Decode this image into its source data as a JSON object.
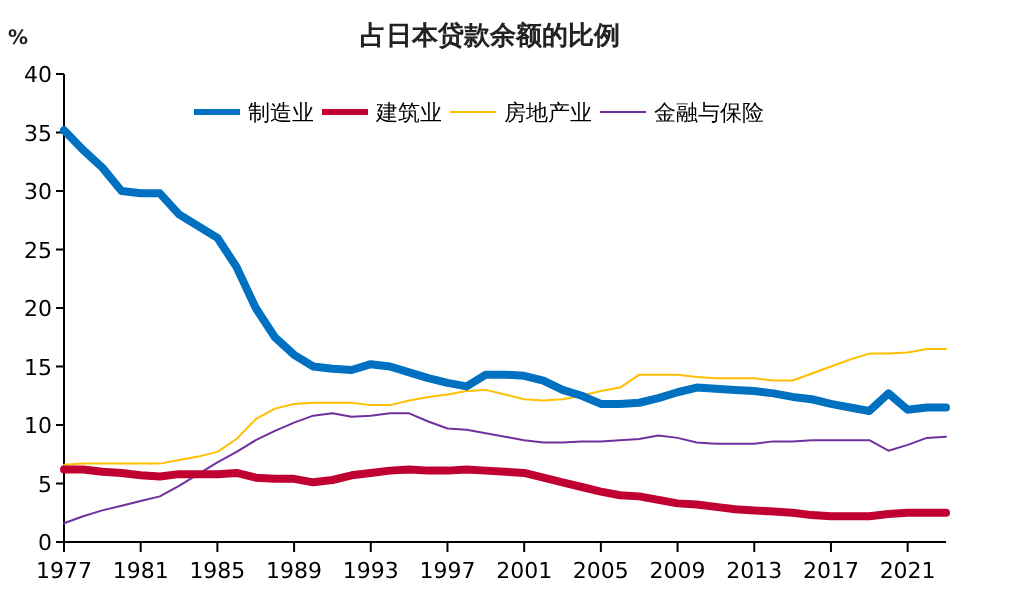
{
  "chart_data": {
    "type": "line",
    "title": "占日本贷款余额的比例",
    "ylabel": "%",
    "x": [
      1977,
      1978,
      1979,
      1980,
      1981,
      1982,
      1983,
      1984,
      1985,
      1986,
      1987,
      1988,
      1989,
      1990,
      1991,
      1992,
      1993,
      1994,
      1995,
      1996,
      1997,
      1998,
      1999,
      2000,
      2001,
      2002,
      2003,
      2004,
      2005,
      2006,
      2007,
      2008,
      2009,
      2010,
      2011,
      2012,
      2013,
      2014,
      2015,
      2016,
      2017,
      2018,
      2019,
      2020,
      2021,
      2022,
      2023
    ],
    "series": [
      {
        "name": "制造业",
        "color": "#0070c0",
        "values": [
          35.2,
          33.5,
          32,
          30,
          29.8,
          29.8,
          28,
          27,
          26,
          23.5,
          20,
          17.5,
          16,
          15,
          14.8,
          14.7,
          15.2,
          15,
          14.5,
          14,
          13.6,
          13.3,
          14.3,
          14.3,
          14.2,
          13.8,
          13,
          12.5,
          11.8,
          11.8,
          11.9,
          12.3,
          12.8,
          13.2,
          13.1,
          13,
          12.9,
          12.7,
          12.4,
          12.2,
          11.8,
          11.5,
          11.2,
          12.7,
          11.3,
          11.5,
          11.5
        ]
      },
      {
        "name": "建筑业",
        "color": "#c00030",
        "values": [
          6.2,
          6.2,
          6,
          5.9,
          5.7,
          5.6,
          5.8,
          5.8,
          5.8,
          5.9,
          5.5,
          5.4,
          5.4,
          5.1,
          5.3,
          5.7,
          5.9,
          6.1,
          6.2,
          6.1,
          6.1,
          6.2,
          6.1,
          6,
          5.9,
          5.5,
          5.1,
          4.7,
          4.3,
          4,
          3.9,
          3.6,
          3.3,
          3.2,
          3,
          2.8,
          2.7,
          2.6,
          2.5,
          2.3,
          2.2,
          2.2,
          2.2,
          2.4,
          2.5,
          2.5,
          2.5
        ]
      },
      {
        "name": "房地产业",
        "color": "#ffc000",
        "values": [
          6.6,
          6.7,
          6.7,
          6.7,
          6.7,
          6.7,
          7,
          7.3,
          7.7,
          8.8,
          10.5,
          11.4,
          11.8,
          11.9,
          11.9,
          11.9,
          11.7,
          11.7,
          12.1,
          12.4,
          12.6,
          12.9,
          13,
          12.6,
          12.2,
          12.1,
          12.2,
          12.5,
          12.9,
          13.2,
          14.3,
          14.3,
          14.3,
          14.1,
          14,
          14,
          14,
          13.8,
          13.8,
          14.4,
          15,
          15.6,
          16.1,
          16.1,
          16.2,
          16.5,
          16.5
        ]
      },
      {
        "name": "金融与保险",
        "color": "#7030a0",
        "values": [
          1.6,
          2.2,
          2.7,
          3.1,
          3.5,
          3.9,
          4.8,
          5.8,
          6.8,
          7.7,
          8.7,
          9.5,
          10.2,
          10.8,
          11,
          10.7,
          10.8,
          11,
          11,
          10.3,
          9.7,
          9.6,
          9.3,
          9,
          8.7,
          8.5,
          8.5,
          8.6,
          8.6,
          8.7,
          8.8,
          9.1,
          8.9,
          8.5,
          8.4,
          8.4,
          8.4,
          8.6,
          8.6,
          8.7,
          8.7,
          8.7,
          8.7,
          7.8,
          8.3,
          8.9,
          9
        ]
      }
    ],
    "xlim": [
      1977,
      2023
    ],
    "xticks": [
      1977,
      1981,
      1985,
      1989,
      1993,
      1997,
      2001,
      2005,
      2009,
      2013,
      2017,
      2021
    ],
    "ylim": [
      0,
      40
    ],
    "yticks": [
      0,
      5,
      10,
      15,
      20,
      25,
      30,
      35,
      40
    ],
    "legend": "top",
    "grid": false,
    "marker": "none",
    "line_style": "solid"
  }
}
